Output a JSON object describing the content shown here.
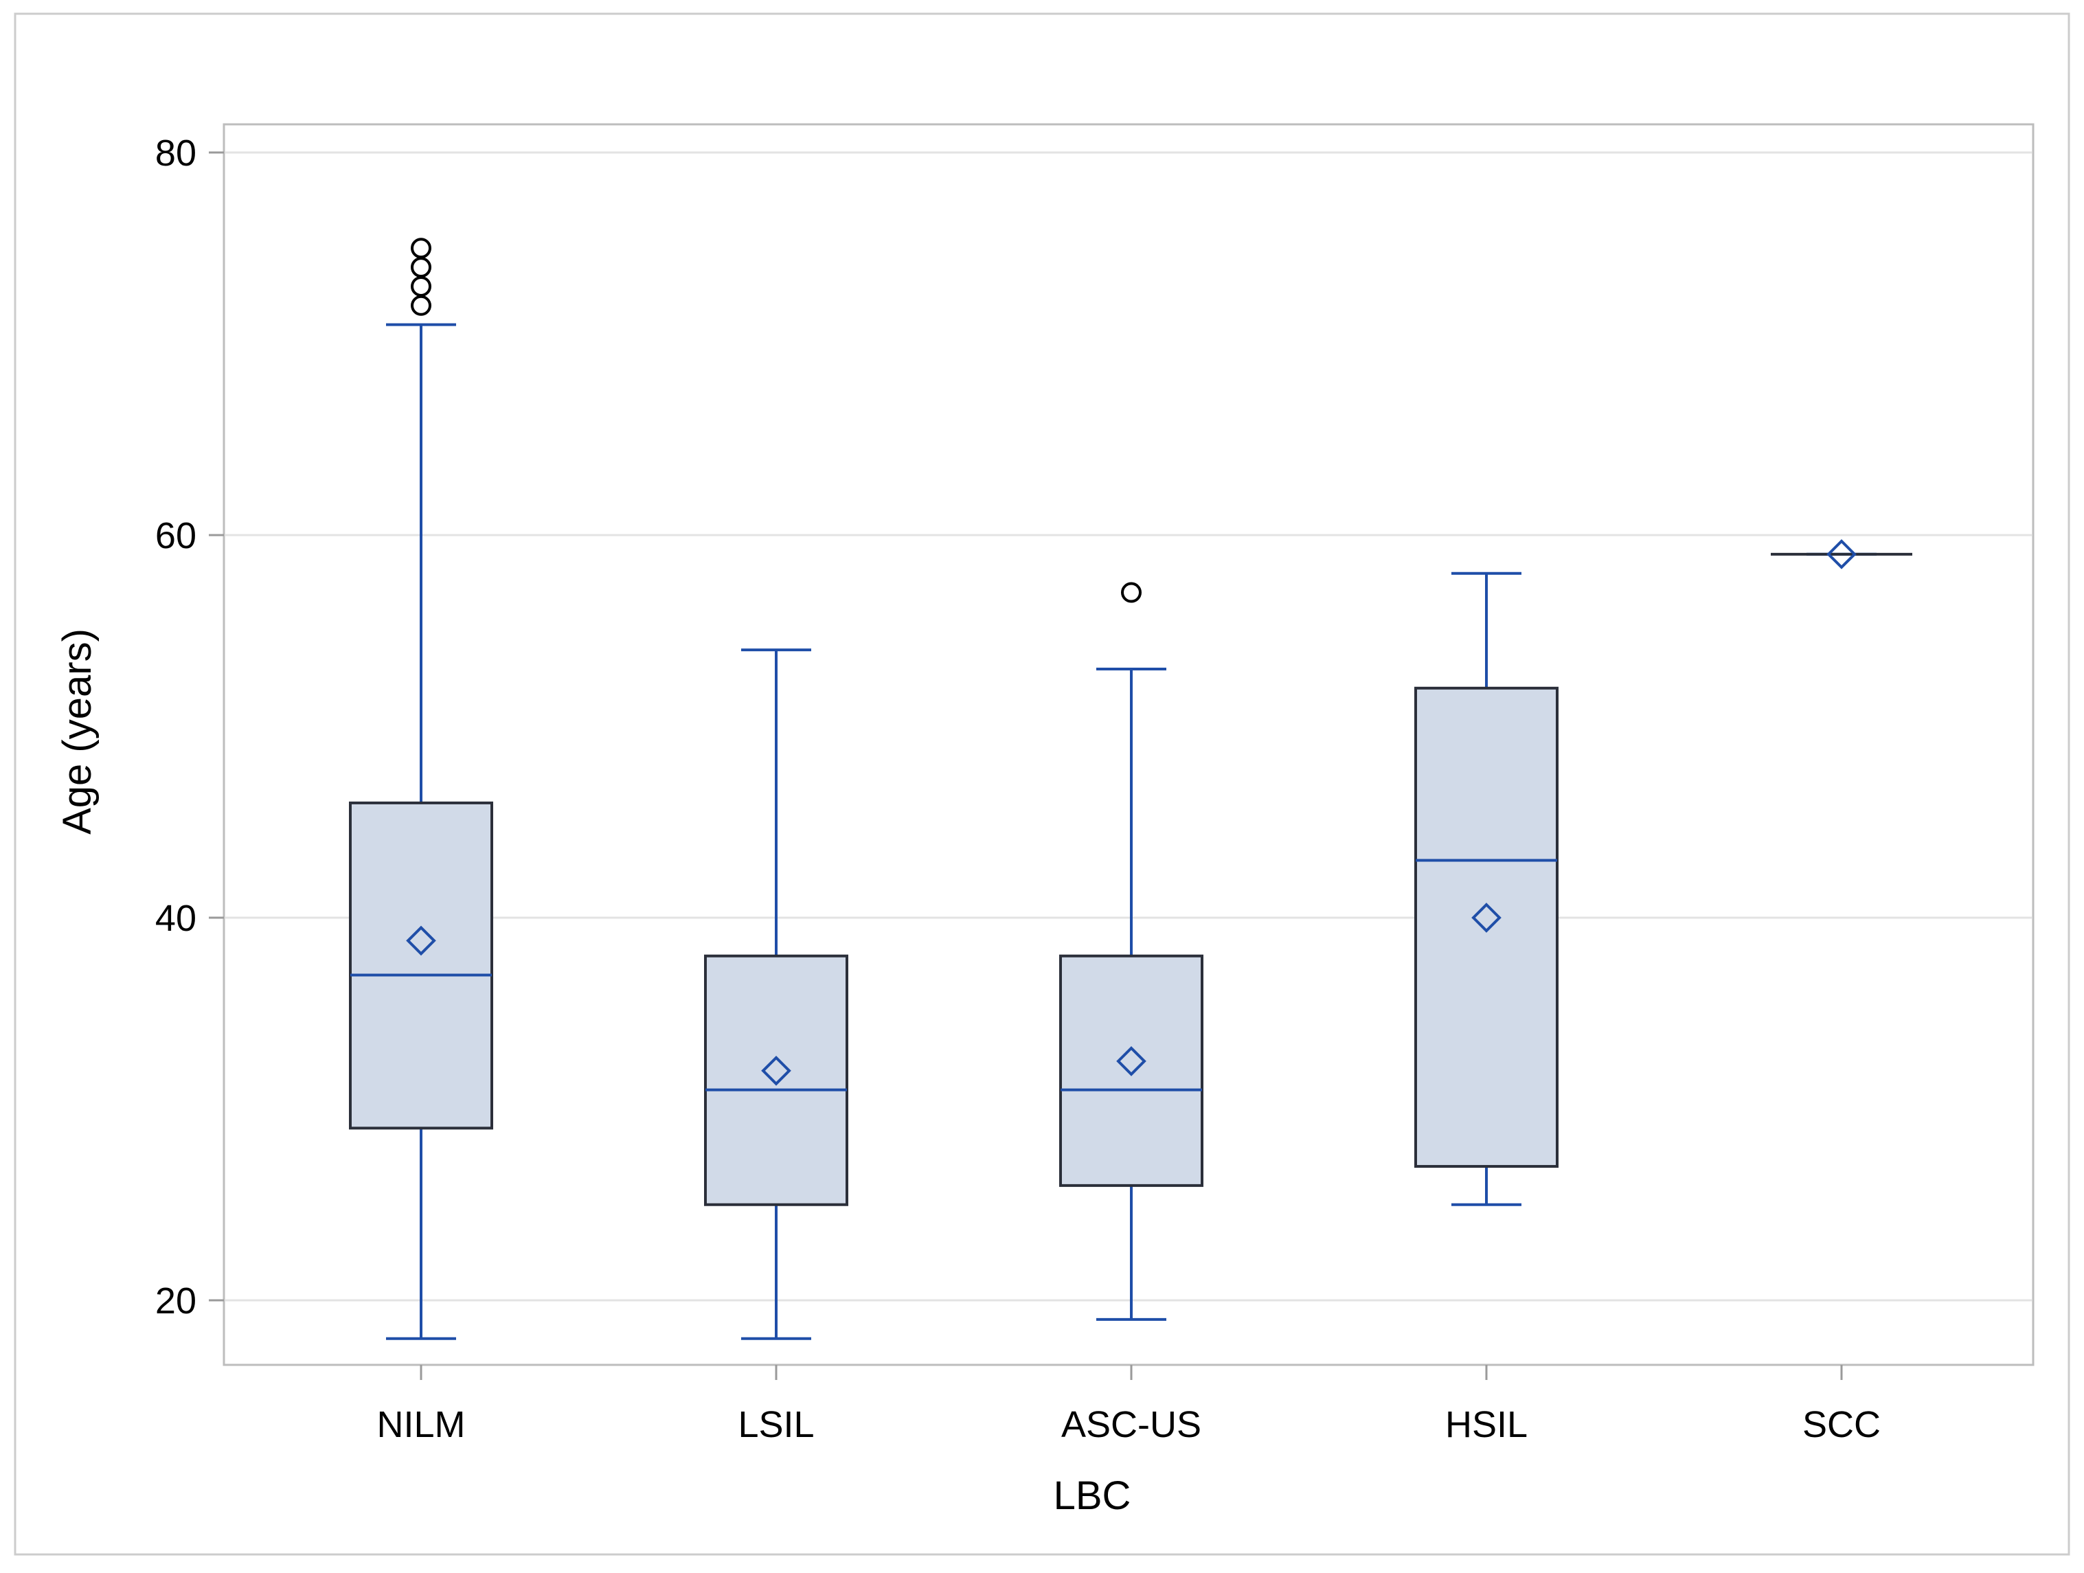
{
  "chart_data": {
    "type": "box",
    "title": "",
    "xlabel": "LBC",
    "ylabel": "Age (years)",
    "ylim": [
      16.5,
      81.5
    ],
    "yticks": [
      20,
      40,
      60,
      80
    ],
    "grid": true,
    "colors": {
      "box_fill": "#d1dae8",
      "box_edge": "#2b2f3a",
      "whisker": "#1f4ea8",
      "median": "#1f4ea8",
      "mean_marker": "#1f4ea8",
      "outlier": "#000000",
      "gridline": "#e3e3e3",
      "axis": "#9a9a9a",
      "frame": "#cccccc"
    },
    "categories": [
      "NILM",
      "LSIL",
      "ASC-US",
      "HSIL",
      "SCC"
    ],
    "boxes": [
      {
        "category": "NILM",
        "min": 18,
        "q1": 29,
        "median": 37,
        "q3": 46,
        "max": 71,
        "mean": 38.8,
        "outliers": [
          72,
          73,
          74,
          75
        ]
      },
      {
        "category": "LSIL",
        "min": 18,
        "q1": 25,
        "median": 31,
        "q3": 38,
        "max": 54,
        "mean": 32,
        "outliers": []
      },
      {
        "category": "ASC-US",
        "min": 19,
        "q1": 26,
        "median": 31,
        "q3": 38,
        "max": 53,
        "mean": 32.5,
        "outliers": [
          57
        ]
      },
      {
        "category": "HSIL",
        "min": 25,
        "q1": 27,
        "median": 43,
        "q3": 52,
        "max": 58,
        "mean": 40,
        "outliers": []
      },
      {
        "category": "SCC",
        "min": 59,
        "q1": 59,
        "median": 59,
        "q3": 59,
        "max": 59,
        "mean": 59,
        "outliers": []
      }
    ]
  }
}
